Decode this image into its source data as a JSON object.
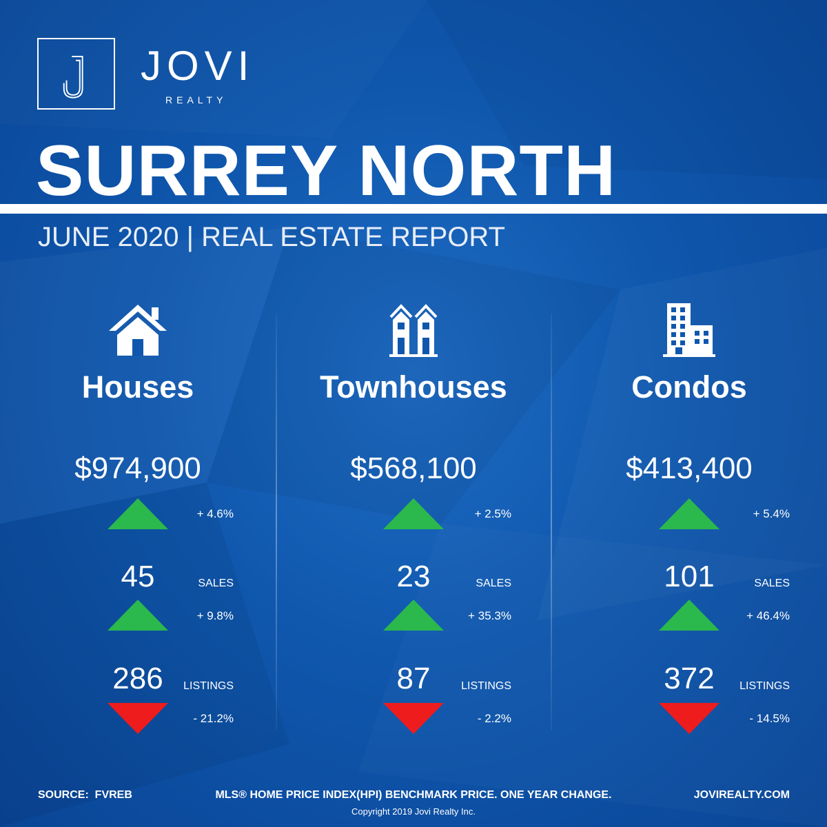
{
  "brand": {
    "name": "JOVI",
    "sub": "REALTY",
    "monogram_icon": "j-monogram-icon"
  },
  "report": {
    "title": "SURREY NORTH",
    "subtitle": "JUNE 2020 | REAL ESTATE REPORT"
  },
  "colors": {
    "background": "#0f57ad",
    "up": "#2bb84d",
    "down": "#ee1c1c"
  },
  "columns": [
    {
      "name": "Houses",
      "icon": "house-icon",
      "price": "$974,900",
      "price_change": "+ 4.6%",
      "sales": "45",
      "sales_label": "SALES",
      "sales_change": "+ 9.8%",
      "listings": "286",
      "listings_label": "LISTINGS",
      "listings_change": "- 21.2%"
    },
    {
      "name": "Townhouses",
      "icon": "townhouse-icon",
      "price": "$568,100",
      "price_change": "+ 2.5%",
      "sales": "23",
      "sales_label": "SALES",
      "sales_change": "+ 35.3%",
      "listings": "87",
      "listings_label": "LISTINGS",
      "listings_change": "- 2.2%"
    },
    {
      "name": "Condos",
      "icon": "condo-building-icon",
      "price": "$413,400",
      "price_change": "+ 5.4%",
      "sales": "101",
      "sales_label": "SALES",
      "sales_change": "+ 46.4%",
      "listings": "372",
      "listings_label": "LISTINGS",
      "listings_change": "- 14.5%"
    }
  ],
  "footer": {
    "source": "SOURCE:  FVREB",
    "note": "MLS® HOME PRICE INDEX(HPI) BENCHMARK PRICE. ONE YEAR CHANGE.",
    "website": "JOVIREALTY.COM",
    "copyright": "Copyright 2019 Jovi Realty Inc."
  }
}
